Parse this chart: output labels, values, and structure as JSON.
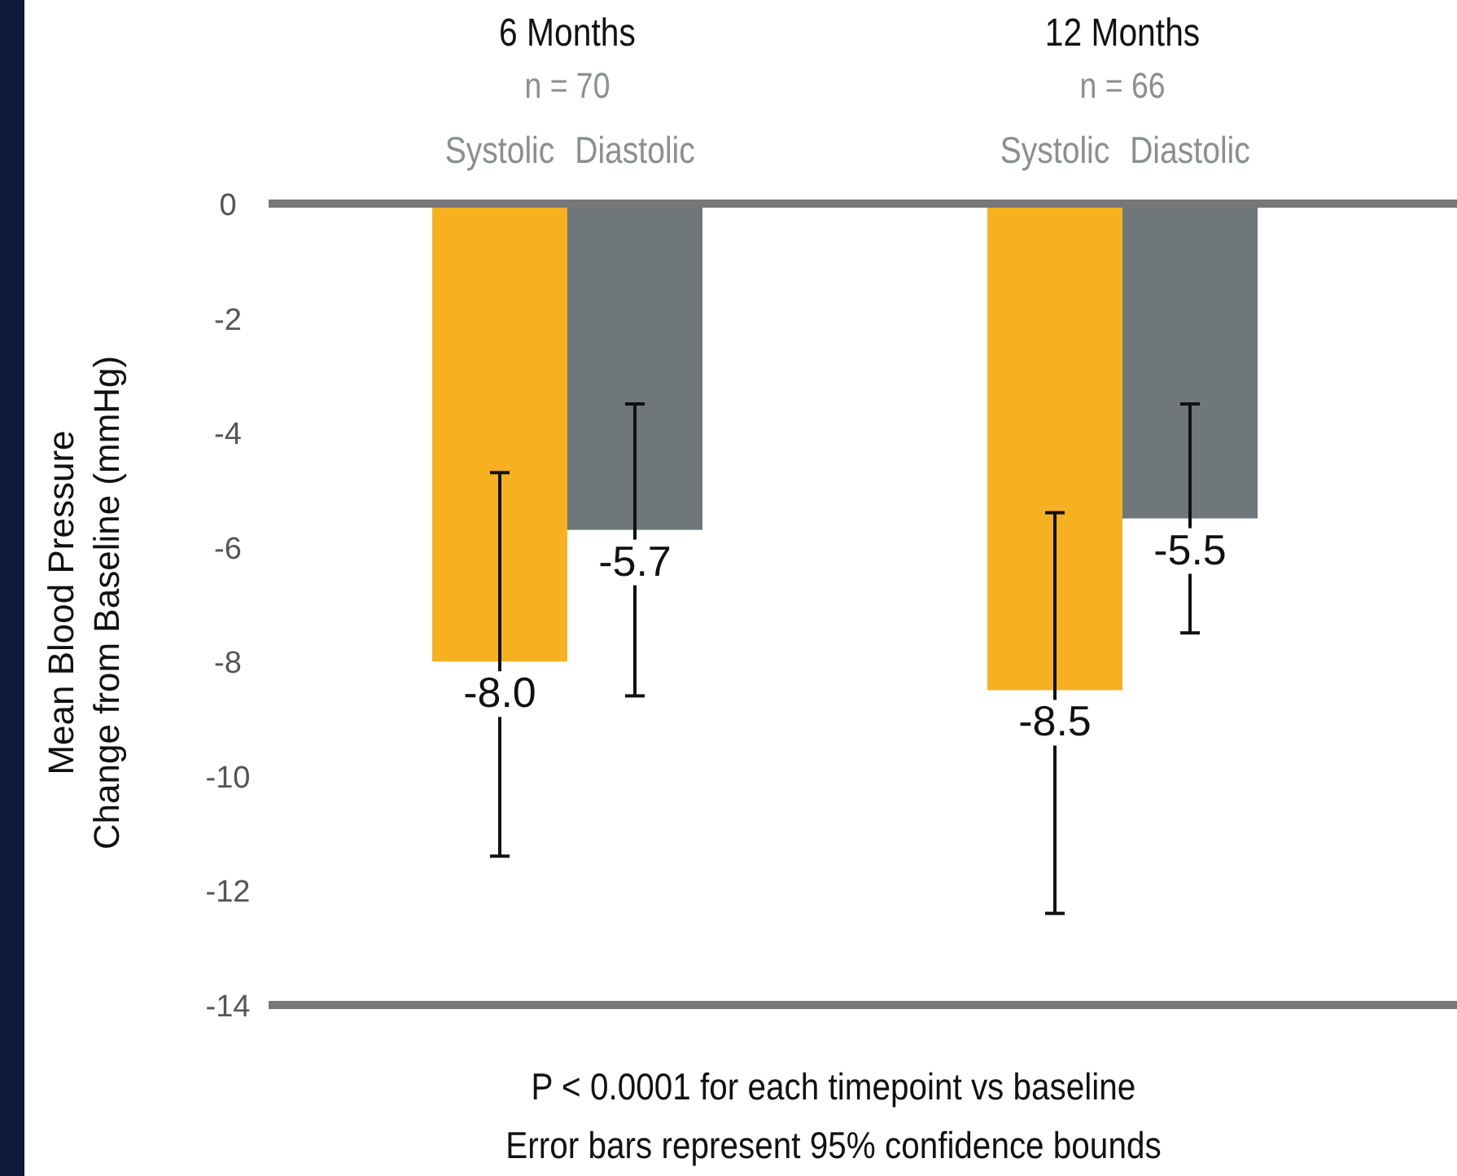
{
  "chart_data": {
    "type": "bar",
    "ylabel": "Mean Blood Pressure\nChange from Baseline (mmHg)",
    "categories": [
      "6 Months",
      "12 Months"
    ],
    "series": [
      {
        "name": "Systolic",
        "color": "#f7b120",
        "values": [
          -8.0,
          -8.5
        ],
        "value_labels": [
          "-8.0",
          "-8.5"
        ],
        "errors": [
          [
            -11.4,
            -4.7
          ],
          [
            -12.4,
            -5.4
          ]
        ]
      },
      {
        "name": "Diastolic",
        "color": "#6f777a",
        "values": [
          -5.7,
          -5.5
        ],
        "value_labels": [
          "-5.7",
          "-5.5"
        ],
        "errors": [
          [
            -8.6,
            -3.5
          ],
          [
            -7.5,
            -3.5
          ]
        ]
      }
    ],
    "ylim": [
      -14,
      0
    ],
    "yticks": [
      0,
      -2,
      -4,
      -6,
      -8,
      -10,
      -12,
      -14
    ],
    "annotations": [
      "n = 70",
      "n = 66",
      "P < 0.0001 for each timepoint vs baseline",
      "Error bars represent 95% confidence bounds"
    ]
  }
}
